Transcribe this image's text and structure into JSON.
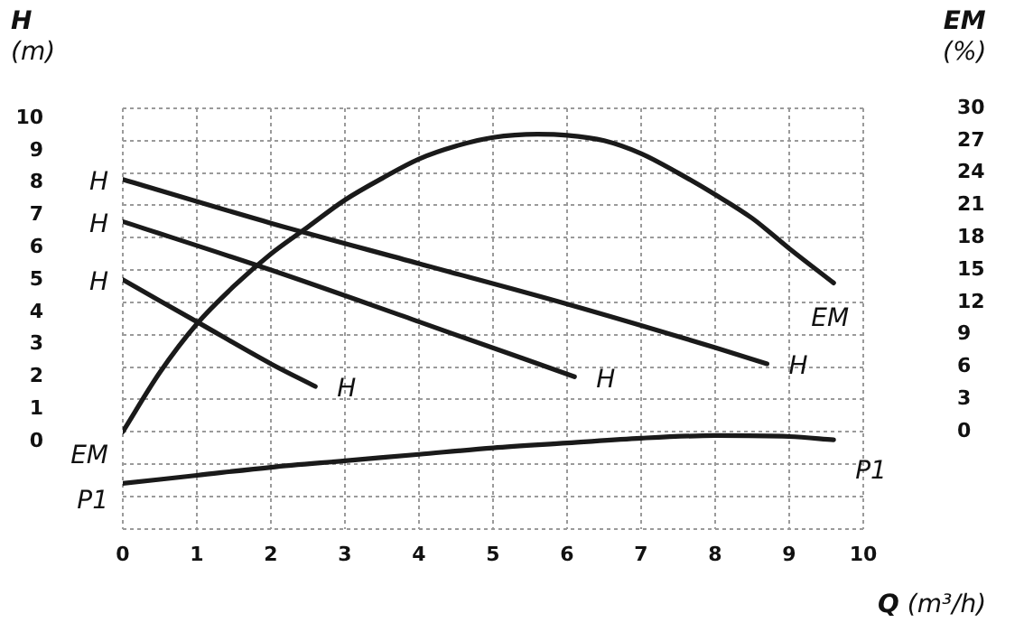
{
  "chart_data": {
    "type": "line",
    "xlabel": "Q (m³/h)",
    "ylabel": "H (m)",
    "y2label": "EM (%)",
    "xlim": [
      0,
      10
    ],
    "xticks": [
      0,
      1,
      2,
      3,
      4,
      5,
      6,
      7,
      8,
      9,
      10
    ],
    "ylim": [
      -3,
      10
    ],
    "yticks": [
      {
        "value": -3,
        "label": null
      },
      {
        "value": -2,
        "label": null
      },
      {
        "value": -1,
        "label": null
      },
      0,
      1,
      2,
      3,
      4,
      5,
      6,
      7,
      8,
      9,
      10
    ],
    "y2lim": [
      -9,
      30
    ],
    "y2ticks": [
      0,
      3,
      6,
      9,
      12,
      15,
      18,
      21,
      24,
      27,
      30
    ],
    "grid": true,
    "legend": false,
    "series": [
      {
        "name": "H",
        "color": "#1a1a1a",
        "x": [
          0,
          2,
          4,
          6,
          8,
          8.7
        ],
        "values": [
          7.8,
          6.45,
          5.2,
          3.95,
          2.6,
          2.1
        ]
      },
      {
        "name": "H",
        "color": "#1a1a1a",
        "x": [
          0,
          2,
          4,
          6.1
        ],
        "values": [
          6.5,
          5.0,
          3.4,
          1.7
        ]
      },
      {
        "name": "H",
        "color": "#1a1a1a",
        "x": [
          0,
          1,
          2,
          2.6
        ],
        "values": [
          4.7,
          3.4,
          2.1,
          1.4
        ]
      },
      {
        "name": "EM",
        "color": "#1a1a1a",
        "axis": "y2",
        "x": [
          0,
          0.5,
          1,
          1.5,
          2,
          2.5,
          3,
          3.5,
          4,
          4.5,
          5,
          5.6,
          6,
          6.5,
          7,
          7.5,
          8,
          8.5,
          9,
          9.6
        ],
        "values": [
          0,
          5.5,
          10,
          13.5,
          16.5,
          19,
          21.5,
          23.5,
          25.3,
          26.5,
          27.3,
          27.6,
          27.5,
          27,
          25.8,
          24,
          22,
          19.8,
          17,
          13.8
        ]
      },
      {
        "name": "P1",
        "color": "#1a1a1a",
        "x": [
          0,
          1,
          2,
          3,
          4,
          5,
          6,
          7,
          8,
          9,
          9.6
        ],
        "values": [
          -1.6,
          -1.35,
          -1.1,
          -0.9,
          -0.7,
          -0.5,
          -0.35,
          -0.2,
          -0.12,
          -0.15,
          -0.25
        ]
      }
    ]
  }
}
